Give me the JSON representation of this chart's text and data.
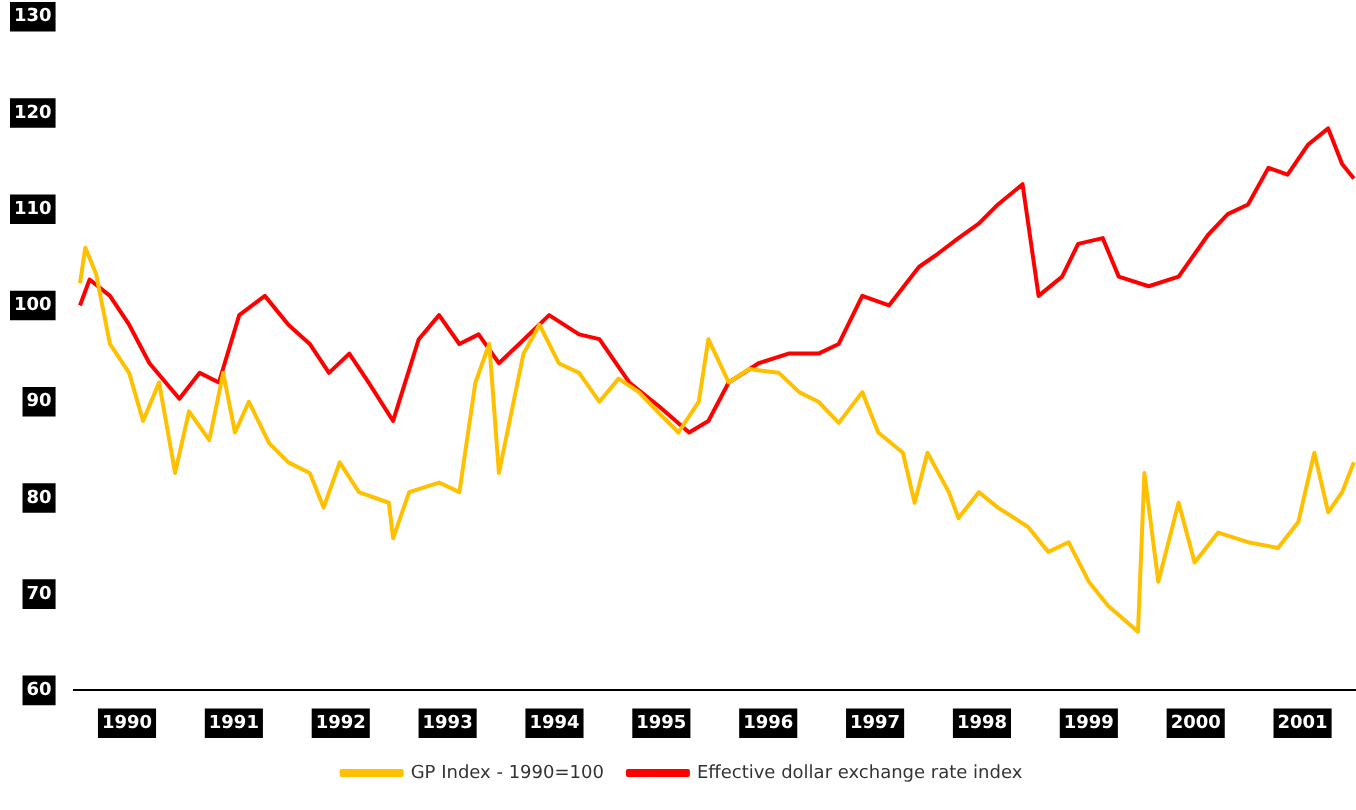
{
  "chart_data": {
    "type": "line",
    "xlim": [
      1990,
      2002
    ],
    "xticks": [
      {
        "value": 1990.5,
        "label": "1990"
      },
      {
        "value": 1991.5,
        "label": "1991"
      },
      {
        "value": 1992.5,
        "label": "1992"
      },
      {
        "value": 1993.5,
        "label": "1993"
      },
      {
        "value": 1994.5,
        "label": "1994"
      },
      {
        "value": 1995.5,
        "label": "1995"
      },
      {
        "value": 1996.5,
        "label": "1996"
      },
      {
        "value": 1997.5,
        "label": "1997"
      },
      {
        "value": 1998.5,
        "label": "1998"
      },
      {
        "value": 1999.5,
        "label": "1999"
      },
      {
        "value": 2000.5,
        "label": "2000"
      },
      {
        "value": 2001.5,
        "label": "2001"
      }
    ],
    "ylim": [
      60,
      130
    ],
    "yticks": [
      60,
      70,
      80,
      90,
      100,
      110,
      120,
      130
    ],
    "grid": false,
    "legend": "bottom",
    "marker": "none",
    "line_style": "solid",
    "series": [
      {
        "name": "GP Index - 1990=100",
        "color": "#ffc000",
        "x": [
          1990.06,
          1990.11,
          1990.21,
          1990.34,
          1990.52,
          1990.65,
          1990.8,
          1990.95,
          1991.08,
          1991.27,
          1991.4,
          1991.51,
          1991.64,
          1991.83,
          1992.01,
          1992.21,
          1992.34,
          1992.49,
          1992.67,
          1992.95,
          1992.99,
          1993.14,
          1993.42,
          1993.61,
          1993.76,
          1993.89,
          1993.98,
          1994.21,
          1994.36,
          1994.54,
          1994.73,
          1994.92,
          1995.1,
          1995.29,
          1995.48,
          1995.66,
          1995.85,
          1995.94,
          1996.13,
          1996.32,
          1996.6,
          1996.79,
          1996.97,
          1997.16,
          1997.38,
          1997.53,
          1997.76,
          1997.87,
          1997.99,
          1998.19,
          1998.28,
          1998.47,
          1998.65,
          1998.93,
          1999.12,
          1999.31,
          1999.5,
          1999.68,
          1999.96,
          2000.02,
          2000.15,
          2000.34,
          2000.49,
          2000.71,
          2000.99,
          2001.27,
          2001.46,
          2001.61,
          2001.74,
          2001.87,
          2001.98
        ],
        "values": [
          102.3,
          106,
          103.3,
          96,
          93,
          88,
          92,
          82.6,
          89,
          86,
          93,
          86.8,
          90,
          85.7,
          83.7,
          82.6,
          79,
          83.7,
          80.6,
          79.5,
          75.8,
          80.6,
          81.6,
          80.6,
          92,
          96,
          82.6,
          95,
          98,
          94,
          93,
          90,
          92.4,
          91,
          88.8,
          86.8,
          90,
          96.5,
          92,
          93.4,
          93,
          91,
          90,
          87.8,
          91,
          86.8,
          84.7,
          79.5,
          84.7,
          80.6,
          77.9,
          80.6,
          79,
          77,
          74.4,
          75.4,
          71.3,
          68.8,
          66.1,
          82.6,
          71.3,
          79.5,
          73.3,
          76.4,
          75.4,
          74.8,
          77.5,
          84.7,
          78.5,
          80.6,
          83.7
        ]
      },
      {
        "name": "Effective dollar exchange rate index",
        "color": "#ff0000",
        "x": [
          1990.06,
          1990.15,
          1990.34,
          1990.52,
          1990.71,
          1990.99,
          1991.18,
          1991.36,
          1991.55,
          1991.79,
          1992.01,
          1992.21,
          1992.39,
          1992.58,
          1992.76,
          1992.99,
          1993.23,
          1993.42,
          1993.61,
          1993.79,
          1993.98,
          1994.17,
          1994.45,
          1994.73,
          1994.92,
          1995.2,
          1995.48,
          1995.76,
          1995.94,
          1996.13,
          1996.41,
          1996.69,
          1996.97,
          1997.16,
          1997.38,
          1997.63,
          1997.91,
          1998.09,
          1998.28,
          1998.47,
          1998.65,
          1998.88,
          1999.03,
          1999.25,
          1999.4,
          1999.63,
          1999.78,
          2000.06,
          2000.34,
          2000.62,
          2000.8,
          2000.99,
          2001.18,
          2001.36,
          2001.55,
          2001.74,
          2001.87,
          2001.98
        ],
        "values": [
          100,
          102.7,
          101,
          98,
          94,
          90.3,
          93,
          92,
          99,
          101,
          98,
          96,
          93,
          95,
          92,
          88,
          96.5,
          99,
          96,
          97,
          94,
          96,
          99,
          97,
          96.5,
          92,
          89.5,
          86.8,
          88,
          92,
          94,
          95,
          95,
          96,
          101,
          100,
          104,
          105.4,
          107,
          108.5,
          110.5,
          112.6,
          101,
          103,
          106.4,
          107,
          103,
          102,
          103,
          107.4,
          109.5,
          110.5,
          114.3,
          113.6,
          116.7,
          118.4,
          114.7,
          113.2
        ]
      }
    ]
  }
}
